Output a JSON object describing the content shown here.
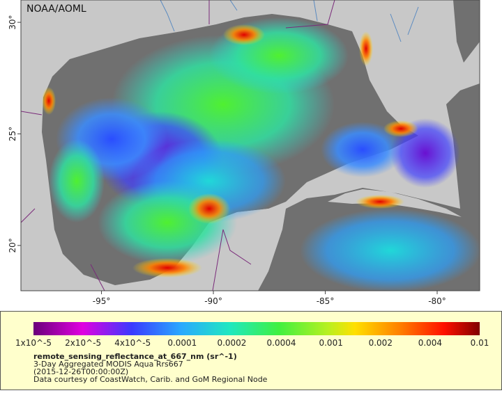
{
  "map": {
    "source_label": "NOAA/AOML",
    "xlim": [
      -98.6,
      -78.1
    ],
    "ylim": [
      17.97,
      31.0
    ],
    "xticks": [
      {
        "value": -95,
        "label": "-95°"
      },
      {
        "value": -90,
        "label": "-90°"
      },
      {
        "value": -85,
        "label": "-85°"
      },
      {
        "value": -80,
        "label": "-80°"
      }
    ],
    "yticks": [
      {
        "value": 30,
        "label": "30°"
      },
      {
        "value": 25,
        "label": "25°"
      },
      {
        "value": 20,
        "label": "20°"
      }
    ]
  },
  "colorbar": {
    "tick_labels": [
      "1x10^-5",
      "2x10^-5",
      "4x10^-5",
      "0.0001",
      "0.0002",
      "0.0004",
      "0.001",
      "0.002",
      "0.004",
      "0.01"
    ],
    "variable": "remote_sensing_reflectance_at_667_nm (sr^-1)",
    "product": "3-Day Aggregated MODIS Aqua Rrs667",
    "date": "(2015-12-26T00:00:00Z)",
    "credit": "Data courtesy of CoastWatch, Carib. and GoM Regional Node"
  }
}
